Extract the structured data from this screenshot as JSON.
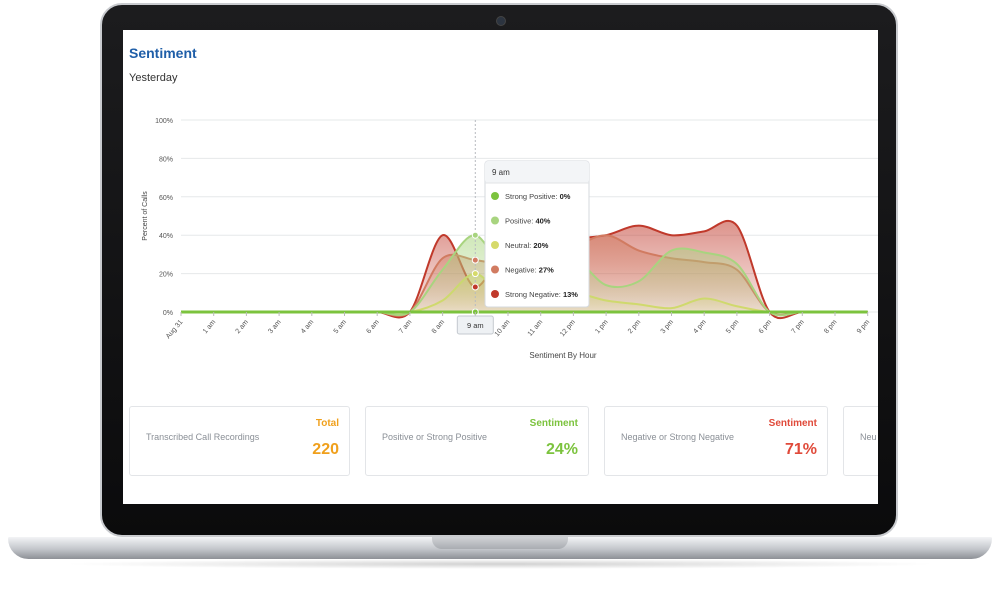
{
  "page": {
    "title": "Sentiment",
    "subtitle": "Yesterday"
  },
  "chart_data": {
    "type": "area",
    "xlabel": "Sentiment By Hour",
    "ylabel": "Percent of Calls",
    "ylim": [
      0,
      100
    ],
    "yticks": [
      "0%",
      "20%",
      "40%",
      "60%",
      "80%",
      "100%"
    ],
    "categories": [
      "Aug 31",
      "1 am",
      "2 am",
      "3 am",
      "4 am",
      "5 am",
      "6 am",
      "7 am",
      "8 am",
      "9 am",
      "10 am",
      "11 am",
      "12 pm",
      "1 pm",
      "2 pm",
      "3 pm",
      "4 pm",
      "5 pm",
      "6 pm",
      "7 pm",
      "8 pm",
      "9 pm"
    ],
    "series": [
      {
        "name": "Strong Positive",
        "color": "#7cc33e",
        "values": [
          0,
          0,
          0,
          0,
          0,
          0,
          0,
          0,
          0,
          0,
          0,
          0,
          0,
          0,
          0,
          0,
          0,
          0,
          0,
          0,
          0,
          0
        ]
      },
      {
        "name": "Positive",
        "color": "#a8d47f",
        "values": [
          0,
          0,
          0,
          0,
          0,
          0,
          0,
          0,
          22,
          40,
          18,
          22,
          28,
          14,
          16,
          32,
          31,
          25,
          0,
          0,
          0,
          0
        ]
      },
      {
        "name": "Neutral",
        "color": "#d6da6a",
        "values": [
          0,
          0,
          0,
          0,
          0,
          0,
          0,
          0,
          6,
          20,
          5,
          8,
          10,
          6,
          4,
          2,
          7,
          3,
          0,
          0,
          0,
          0
        ]
      },
      {
        "name": "Negative",
        "color": "#d17b61",
        "values": [
          0,
          0,
          0,
          0,
          0,
          0,
          0,
          0,
          28,
          27,
          24,
          22,
          33,
          40,
          32,
          28,
          26,
          22,
          0,
          0,
          0,
          0
        ]
      },
      {
        "name": "Strong Negative",
        "color": "#c0392b",
        "values": [
          0,
          0,
          0,
          0,
          0,
          0,
          0,
          0,
          40,
          13,
          36,
          34,
          38,
          40,
          45,
          40,
          42,
          45,
          0,
          0,
          0,
          0
        ]
      }
    ],
    "tooltip": {
      "title": "9 am",
      "items": [
        {
          "label": "Strong Positive:",
          "value": "0%"
        },
        {
          "label": "Positive:",
          "value": "40%"
        },
        {
          "label": "Neutral:",
          "value": "20%"
        },
        {
          "label": "Negative:",
          "value": "27%"
        },
        {
          "label": "Strong Negative:",
          "value": "13%"
        }
      ]
    },
    "x_highlight": "9 am",
    "grid": true
  },
  "summary_cards": [
    {
      "label": "Transcribed Call Recordings",
      "heading": "Total",
      "value": "220",
      "color": "#f0a01c"
    },
    {
      "label": "Positive or Strong Positive",
      "heading": "Sentiment",
      "value": "24%",
      "color": "#7cc33e"
    },
    {
      "label": "Negative or Strong Negative",
      "heading": "Sentiment",
      "value": "71%",
      "color": "#e04a3a"
    },
    {
      "label": "Neu",
      "heading": "",
      "value": "",
      "color": "#999999"
    }
  ]
}
